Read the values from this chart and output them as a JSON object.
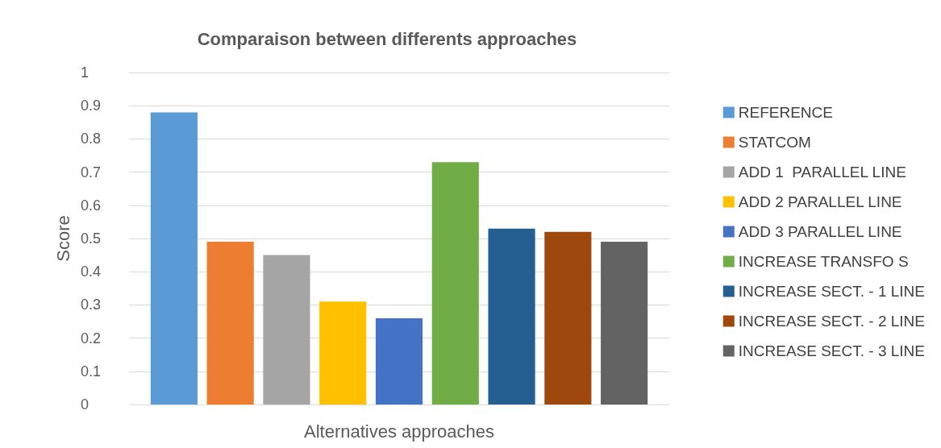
{
  "chart_data": {
    "type": "bar",
    "title": "Comparaison between differents approaches",
    "xlabel": "Alternatives approaches",
    "ylabel": "Score",
    "categories": [
      null
    ],
    "series": [
      {
        "name": "REFERENCE",
        "color": "#5b9bd5",
        "values": [
          0.88
        ]
      },
      {
        "name": "STATCOM",
        "color": "#ed7d31",
        "values": [
          0.49
        ]
      },
      {
        "name": "ADD 1  PARALLEL LINE",
        "color": "#a5a5a5",
        "values": [
          0.45
        ]
      },
      {
        "name": "ADD 2 PARALLEL LINE",
        "color": "#ffc000",
        "values": [
          0.31
        ]
      },
      {
        "name": "ADD 3 PARALLEL LINE",
        "color": "#4472c4",
        "values": [
          0.26
        ]
      },
      {
        "name": "INCREASE TRANSFO S",
        "color": "#70ad47",
        "values": [
          0.73
        ]
      },
      {
        "name": "INCREASE SECT. - 1 LINE",
        "color": "#255e91",
        "values": [
          0.53
        ]
      },
      {
        "name": "INCREASE SECT. - 2 LINE",
        "color": "#9e480e",
        "values": [
          0.52
        ]
      },
      {
        "name": "INCREASE SECT. - 3 LINE",
        "color": "#636363",
        "values": [
          0.49
        ]
      }
    ],
    "ylim": [
      0,
      1
    ],
    "yticks": [
      0,
      0.1,
      0.2,
      0.3,
      0.4,
      0.5,
      0.6,
      0.7,
      0.8,
      0.9,
      1
    ],
    "grid": "y",
    "legend": "right"
  }
}
